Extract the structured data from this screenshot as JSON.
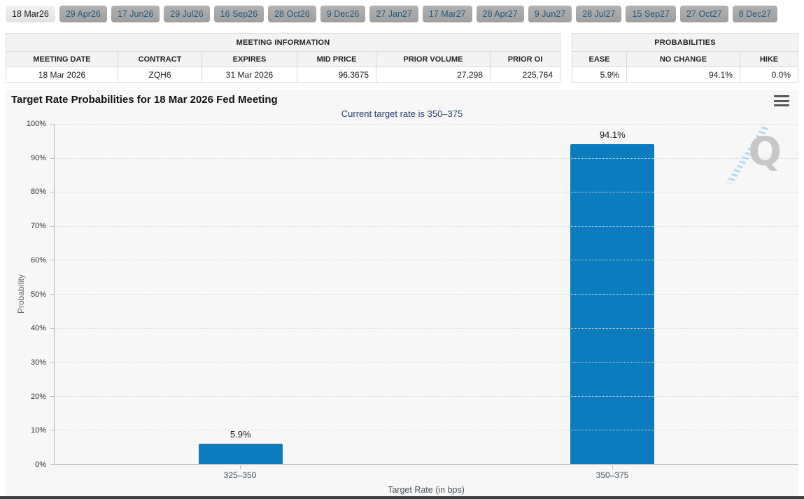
{
  "tabs": {
    "items": [
      {
        "label": "18 Mar26",
        "active": true
      },
      {
        "label": "29 Apr26",
        "active": false
      },
      {
        "label": "17 Jun26",
        "active": false
      },
      {
        "label": "29 Jul26",
        "active": false
      },
      {
        "label": "16 Sep26",
        "active": false
      },
      {
        "label": "28 Oct26",
        "active": false
      },
      {
        "label": "9 Dec26",
        "active": false
      },
      {
        "label": "27 Jan27",
        "active": false
      },
      {
        "label": "17 Mar27",
        "active": false
      },
      {
        "label": "28 Apr27",
        "active": false
      },
      {
        "label": "9 Jun27",
        "active": false
      },
      {
        "label": "28 Jul27",
        "active": false
      },
      {
        "label": "15 Sep27",
        "active": false
      },
      {
        "label": "27 Oct27",
        "active": false
      },
      {
        "label": "8 Dec27",
        "active": false
      }
    ]
  },
  "meeting_info": {
    "title": "MEETING INFORMATION",
    "columns": [
      "MEETING DATE",
      "CONTRACT",
      "EXPIRES",
      "MID PRICE",
      "PRIOR VOLUME",
      "PRIOR OI"
    ],
    "row": {
      "meeting_date": "18 Mar 2026",
      "contract": "ZQH6",
      "expires": "31 Mar 2026",
      "mid_price": "96.3675",
      "prior_volume": "27,298",
      "prior_oi": "225,764"
    }
  },
  "probabilities": {
    "title": "PROBABILITIES",
    "columns": [
      "EASE",
      "NO CHANGE",
      "HIKE"
    ],
    "row": {
      "ease": "5.9%",
      "no_change": "94.1%",
      "hike": "0.0%"
    }
  },
  "chart_data": {
    "type": "bar",
    "title": "Target Rate Probabilities for 18 Mar 2026 Fed Meeting",
    "subtitle": "Current target rate is 350–375",
    "categories": [
      "325–350",
      "350–375"
    ],
    "values": [
      5.9,
      94.1
    ],
    "labels": [
      "5.9%",
      "94.1%"
    ],
    "xlabel": "Target Rate (in bps)",
    "ylabel": "Probability",
    "ylim": [
      0,
      100
    ],
    "ytick_labels": [
      "100%",
      "90%",
      "80%",
      "70%",
      "60%",
      "50%",
      "40%",
      "30%",
      "20%",
      "10%",
      "0%"
    ],
    "bar_color": "#0b7dbe",
    "grid": "dotted horizontal gridlines every 10%",
    "legend": "none",
    "watermark_letter": "Q"
  },
  "colors": {
    "bar_blue": "#0b7dbe",
    "subtitle_navy": "#28406b",
    "chart_background": "#f7f7f7",
    "tab_inactive_bg": "#a8a8a8",
    "tab_active_bg": "#e9e9e9",
    "footer_bar": "#3d3d3d"
  }
}
